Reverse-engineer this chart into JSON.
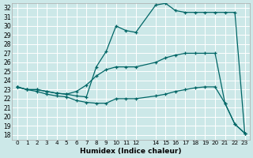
{
  "xlabel": "Humidex (Indice chaleur)",
  "bg_color": "#cce8e8",
  "line_color": "#006666",
  "grid_color": "#ffffff",
  "xlim": [
    -0.5,
    23.5
  ],
  "ylim": [
    17.5,
    32.5
  ],
  "yticks": [
    18,
    19,
    20,
    21,
    22,
    23,
    24,
    25,
    26,
    27,
    28,
    29,
    30,
    31,
    32
  ],
  "xticks": [
    0,
    1,
    2,
    3,
    4,
    5,
    6,
    7,
    8,
    9,
    10,
    11,
    12,
    14,
    15,
    16,
    17,
    18,
    19,
    20,
    21,
    22,
    23
  ],
  "xtick_labels": [
    "0",
    "1",
    "2",
    "3",
    "4",
    "5",
    "6",
    "7",
    "8",
    "9",
    "10",
    "11",
    "12",
    "14",
    "15",
    "16",
    "17",
    "18",
    "19",
    "20",
    "21",
    "22",
    "23"
  ],
  "series": [
    {
      "x": [
        0,
        1,
        2,
        3,
        4,
        5,
        6,
        7,
        8,
        9,
        10,
        11,
        12,
        14,
        15,
        16,
        17,
        18,
        19,
        20,
        21,
        22,
        23
      ],
      "y": [
        23.3,
        23.0,
        23.0,
        22.8,
        22.6,
        22.5,
        22.3,
        22.2,
        25.5,
        27.2,
        30.0,
        29.5,
        29.3,
        32.3,
        32.5,
        31.7,
        31.5,
        31.5,
        31.5,
        31.5,
        31.5,
        31.5,
        18.2
      ]
    },
    {
      "x": [
        0,
        1,
        2,
        3,
        4,
        5,
        6,
        7,
        8,
        9,
        10,
        11,
        12,
        14,
        15,
        16,
        17,
        18,
        19,
        20,
        21,
        22,
        23
      ],
      "y": [
        23.3,
        23.0,
        23.0,
        22.8,
        22.6,
        22.5,
        22.8,
        23.5,
        24.5,
        25.2,
        25.5,
        25.5,
        25.5,
        26.0,
        26.5,
        26.8,
        27.0,
        27.0,
        27.0,
        27.0,
        21.5,
        19.2,
        18.2
      ]
    },
    {
      "x": [
        0,
        1,
        2,
        3,
        4,
        5,
        6,
        7,
        8,
        9,
        10,
        11,
        12,
        14,
        15,
        16,
        17,
        18,
        19,
        20,
        21,
        22,
        23
      ],
      "y": [
        23.3,
        23.0,
        22.8,
        22.5,
        22.3,
        22.2,
        21.8,
        21.6,
        21.5,
        21.5,
        22.0,
        22.0,
        22.0,
        22.3,
        22.5,
        22.8,
        23.0,
        23.2,
        23.3,
        23.3,
        21.5,
        19.2,
        18.2
      ]
    }
  ]
}
